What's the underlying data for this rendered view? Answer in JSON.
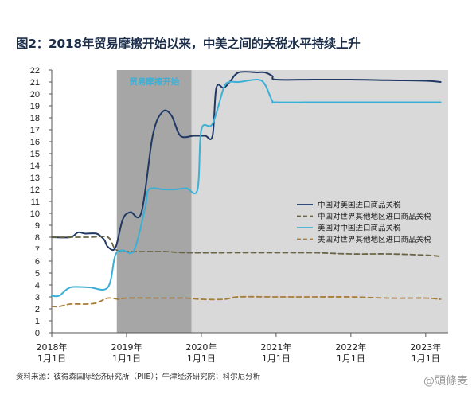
{
  "title": "图2：2018年贸易摩擦开始以来，中美之间的关税水平持续上升",
  "source": "资料来源：彼得森国际经济研究所（PIIE）；牛津经济研究院；科尔尼分析",
  "watermark": "@頭條麦",
  "chart_data": {
    "type": "line",
    "ylim": [
      0,
      22
    ],
    "yticks": [
      0,
      1,
      2,
      3,
      4,
      5,
      6,
      7,
      8,
      9,
      10,
      11,
      12,
      13,
      14,
      15,
      16,
      17,
      18,
      19,
      20,
      21,
      22
    ],
    "xlim": [
      2018.0,
      2023.3
    ],
    "xticks": [
      {
        "x": 2018.0,
        "line1": "2018年",
        "line2": "1月1日"
      },
      {
        "x": 2019.0,
        "line1": "2019年",
        "line2": "1月1日"
      },
      {
        "x": 2020.0,
        "line1": "2020年",
        "line2": "1月1日"
      },
      {
        "x": 2021.0,
        "line1": "2021年",
        "line2": "1月1日"
      },
      {
        "x": 2022.0,
        "line1": "2022年",
        "line2": "1月1日"
      },
      {
        "x": 2023.0,
        "line1": "2023年",
        "line2": "1月1日"
      }
    ],
    "shaded_regions": [
      {
        "from": 2018.87,
        "to": 2019.87,
        "color": "#a6a6a6",
        "label": "贸易摩擦开始"
      },
      {
        "from": 2019.87,
        "to": 2023.3,
        "color": "#d9d9d9",
        "label": ""
      }
    ],
    "legend_position": "right",
    "series": [
      {
        "name": "中国对美国进口商品关税",
        "color": "#1f3864",
        "dash": false,
        "points": [
          [
            2018.0,
            8.0
          ],
          [
            2018.25,
            8.0
          ],
          [
            2018.35,
            8.4
          ],
          [
            2018.45,
            8.3
          ],
          [
            2018.6,
            8.3
          ],
          [
            2018.7,
            7.8
          ],
          [
            2018.75,
            7.2
          ],
          [
            2018.85,
            7.1
          ],
          [
            2018.95,
            9.5
          ],
          [
            2019.05,
            10.1
          ],
          [
            2019.2,
            10.1
          ],
          [
            2019.35,
            16.5
          ],
          [
            2019.48,
            18.5
          ],
          [
            2019.6,
            18.2
          ],
          [
            2019.72,
            16.5
          ],
          [
            2019.9,
            16.5
          ],
          [
            2020.05,
            16.5
          ],
          [
            2020.15,
            16.5
          ],
          [
            2020.2,
            20.5
          ],
          [
            2020.3,
            20.5
          ],
          [
            2020.38,
            21.0
          ],
          [
            2020.5,
            21.8
          ],
          [
            2020.75,
            21.8
          ],
          [
            2020.85,
            21.8
          ],
          [
            2020.95,
            21.5
          ],
          [
            2021.0,
            21.2
          ],
          [
            2021.5,
            21.2
          ],
          [
            2022.0,
            21.2
          ],
          [
            2022.5,
            21.15
          ],
          [
            2023.0,
            21.1
          ],
          [
            2023.2,
            21.0
          ]
        ]
      },
      {
        "name": "中国对世界其他地区进口商品关税",
        "color": "#6b6544",
        "dash": true,
        "points": [
          [
            2018.0,
            8.0
          ],
          [
            2018.5,
            8.0
          ],
          [
            2018.75,
            8.0
          ],
          [
            2018.85,
            7.0
          ],
          [
            2019.0,
            6.8
          ],
          [
            2019.5,
            6.8
          ],
          [
            2019.8,
            6.7
          ],
          [
            2020.5,
            6.7
          ],
          [
            2021.0,
            6.7
          ],
          [
            2021.5,
            6.7
          ],
          [
            2022.0,
            6.6
          ],
          [
            2022.5,
            6.6
          ],
          [
            2023.0,
            6.5
          ],
          [
            2023.2,
            6.4
          ]
        ]
      },
      {
        "name": "美国对中国进口商品关税",
        "color": "#3ab0d6",
        "dash": false,
        "points": [
          [
            2018.0,
            3.1
          ],
          [
            2018.1,
            3.1
          ],
          [
            2018.25,
            3.8
          ],
          [
            2018.5,
            3.8
          ],
          [
            2018.75,
            3.8
          ],
          [
            2018.85,
            6.5
          ],
          [
            2018.95,
            6.9
          ],
          [
            2019.1,
            6.9
          ],
          [
            2019.25,
            10.5
          ],
          [
            2019.3,
            12.0
          ],
          [
            2019.5,
            12.0
          ],
          [
            2019.65,
            12.0
          ],
          [
            2019.8,
            12.1
          ],
          [
            2019.95,
            12.0
          ],
          [
            2020.0,
            17.0
          ],
          [
            2020.15,
            17.5
          ],
          [
            2020.3,
            20.5
          ],
          [
            2020.38,
            21.0
          ],
          [
            2020.5,
            21.0
          ],
          [
            2020.75,
            21.2
          ],
          [
            2020.85,
            20.8
          ],
          [
            2020.95,
            19.4
          ],
          [
            2021.0,
            19.3
          ],
          [
            2021.5,
            19.3
          ],
          [
            2022.0,
            19.3
          ],
          [
            2022.5,
            19.3
          ],
          [
            2023.0,
            19.3
          ],
          [
            2023.2,
            19.3
          ]
        ]
      },
      {
        "name": "美国对世界其他地区进口商品关税",
        "color": "#a67d3b",
        "dash": true,
        "points": [
          [
            2018.0,
            2.2
          ],
          [
            2018.1,
            2.2
          ],
          [
            2018.25,
            2.4
          ],
          [
            2018.45,
            2.4
          ],
          [
            2018.6,
            2.5
          ],
          [
            2018.75,
            2.9
          ],
          [
            2018.9,
            2.8
          ],
          [
            2019.0,
            2.9
          ],
          [
            2019.5,
            2.9
          ],
          [
            2019.8,
            2.9
          ],
          [
            2020.0,
            2.8
          ],
          [
            2020.3,
            2.8
          ],
          [
            2020.5,
            3.0
          ],
          [
            2021.0,
            3.0
          ],
          [
            2021.5,
            3.0
          ],
          [
            2022.0,
            3.0
          ],
          [
            2022.5,
            2.9
          ],
          [
            2023.0,
            2.9
          ],
          [
            2023.2,
            2.8
          ]
        ]
      }
    ]
  }
}
